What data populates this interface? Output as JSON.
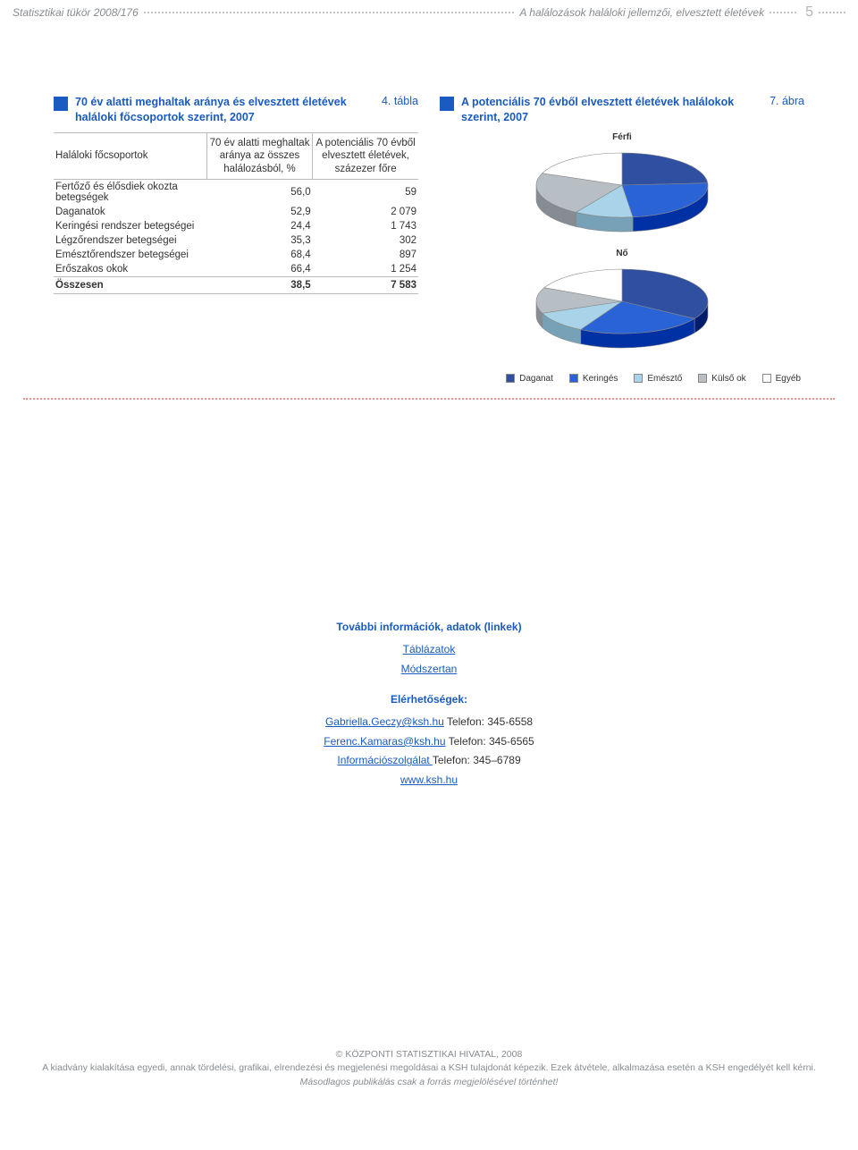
{
  "header": {
    "left": "Statisztikai tükör 2008/176",
    "right": "A halálozások haláloki jellemzői, elvesztett életévek",
    "pageNumber": "5"
  },
  "table": {
    "tableNumber": "4. tábla",
    "title": "70 év alatti meghaltak aránya és elvesztett életévek haláloki főcsoportok szerint, 2007",
    "colHeaders": {
      "c0": "Haláloki főcsoportok",
      "c1": "70 év alatti meghaltak aránya az összes halálozásból, %",
      "c2": "A potenciális 70 évből elvesztett életévek, százezer főre"
    },
    "rows": [
      {
        "name": "Fertőző és élősdiek okozta betegségek",
        "v1": "56,0",
        "v2": "59"
      },
      {
        "name": "Daganatok",
        "v1": "52,9",
        "v2": "2 079"
      },
      {
        "name": "Keringési rendszer betegségei",
        "v1": "24,4",
        "v2": "1 743"
      },
      {
        "name": "Légzőrendszer betegségei",
        "v1": "35,3",
        "v2": "302"
      },
      {
        "name": "Emésztőrendszer betegségei",
        "v1": "68,4",
        "v2": "897"
      },
      {
        "name": "Erőszakos okok",
        "v1": "66,4",
        "v2": "1 254"
      }
    ],
    "sumRow": {
      "name": "Összesen",
      "v1": "38,5",
      "v2": "7 583"
    }
  },
  "chart": {
    "chartNumber": "7. ábra",
    "title": "A potenciális 70 évből elvesztett életévek halálokok szerint, 2007",
    "labels": {
      "male": "Férfi",
      "female": "Nő"
    },
    "legend": [
      "Daganat",
      "Keringés",
      "Emésztő",
      "Külső ok",
      "Egyéb"
    ],
    "colors": {
      "daganat": "#2f4fa0",
      "keringes": "#2a63d6",
      "emeszto": "#a9d3e8",
      "kulso": "#b8bfc4",
      "egyeb": "#ffffff",
      "outline": "#888888"
    },
    "maleSlices": [
      {
        "name": "daganat",
        "value": 24,
        "color": "#2f4fa0"
      },
      {
        "name": "keringes",
        "value": 24,
        "color": "#2a63d6"
      },
      {
        "name": "emeszto",
        "value": 11,
        "color": "#a9d3e8"
      },
      {
        "name": "kulso",
        "value": 22,
        "color": "#b8bfc4"
      },
      {
        "name": "egyeb",
        "value": 19,
        "color": "#ffffff"
      }
    ],
    "femaleSlices": [
      {
        "name": "daganat",
        "value": 34,
        "color": "#2f4fa0"
      },
      {
        "name": "keringes",
        "value": 24,
        "color": "#2a63d6"
      },
      {
        "name": "emeszto",
        "value": 11,
        "color": "#a9d3e8"
      },
      {
        "name": "kulso",
        "value": 13,
        "color": "#b8bfc4"
      },
      {
        "name": "egyeb",
        "value": 18,
        "color": "#ffffff"
      }
    ]
  },
  "infoCard": {
    "heading1": "További információk, adatok (linkek)",
    "links1": [
      "Táblázatok",
      "Módszertan"
    ],
    "heading2": "Elérhetőségek:",
    "contacts": [
      {
        "link": "Gabriella.Geczy@ksh.hu",
        "tail": " Telefon: 345-6558"
      },
      {
        "link": "Ferenc.Kamaras@ksh.hu",
        "tail": " Telefon: 345-6565"
      },
      {
        "link": "Információszolgálat ",
        "tail": "Telefon: 345–6789"
      }
    ],
    "finalLink": "www.ksh.hu"
  },
  "footer": {
    "line1": "© KÖZPONTI STATISZTIKAI HIVATAL, 2008",
    "line2": "A kiadvány kialakítása egyedi, annak tördelési, grafikai, elrendezési és megjelenési megoldásai a KSH tulajdonát képezik. Ezek átvétele, alkalmazása esetén a KSH engedélyét kell kérni.",
    "line3": "Másodlagos publikálás csak a forrás megjelölésével történhet!"
  }
}
